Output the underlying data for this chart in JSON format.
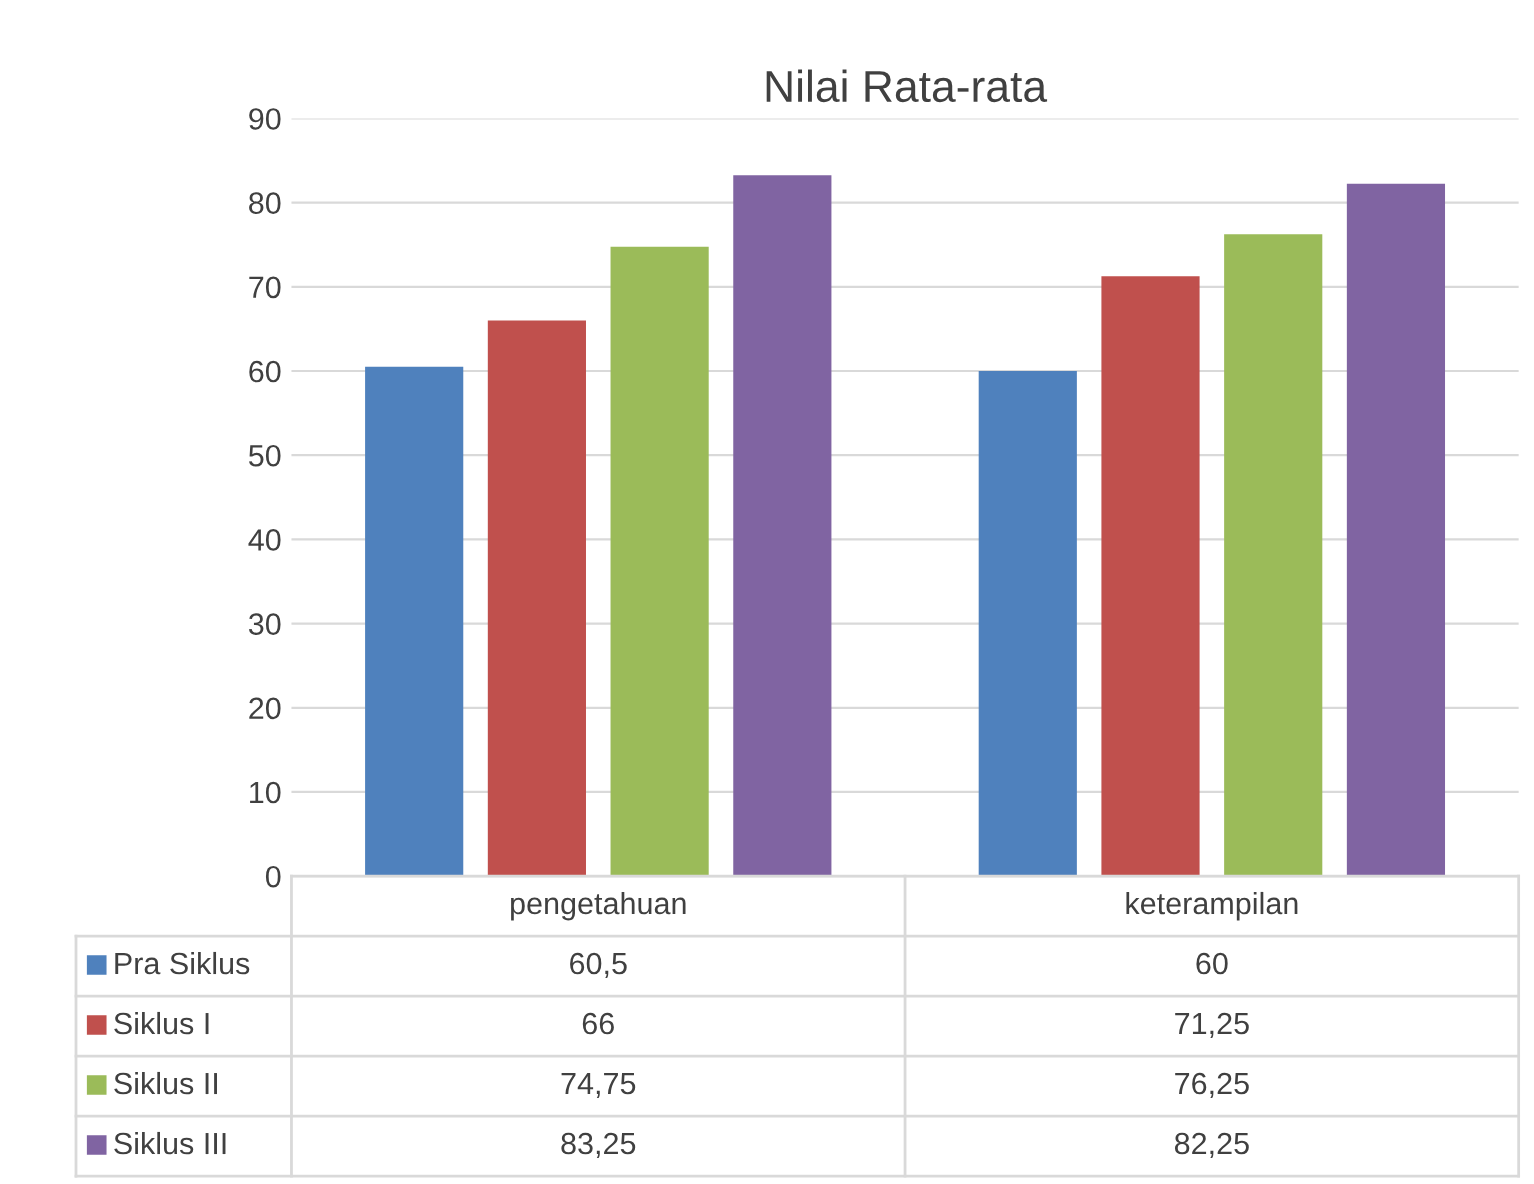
{
  "chart_data": {
    "type": "bar",
    "title": "Nilai Rata-rata",
    "categories": [
      "pengetahuan",
      "keterampilan"
    ],
    "series": [
      {
        "name": "Pra Siklus",
        "color": "#4f81bd",
        "values": [
          60.5,
          60
        ],
        "value_labels": [
          "60,5",
          "60"
        ]
      },
      {
        "name": "Siklus I",
        "color": "#c0504d",
        "values": [
          66,
          71.25
        ],
        "value_labels": [
          "66",
          "71,25"
        ]
      },
      {
        "name": "Siklus II",
        "color": "#9bbb59",
        "values": [
          74.75,
          76.25
        ],
        "value_labels": [
          "74,75",
          "76,25"
        ]
      },
      {
        "name": "Siklus III",
        "color": "#8064a2",
        "values": [
          83.25,
          82.25
        ],
        "value_labels": [
          "83,25",
          "82,25"
        ]
      }
    ],
    "ylim": [
      0,
      90
    ],
    "yticks": [
      0,
      10,
      20,
      30,
      40,
      50,
      60,
      70,
      80,
      90
    ],
    "grid": "y",
    "legend": "bottom"
  }
}
